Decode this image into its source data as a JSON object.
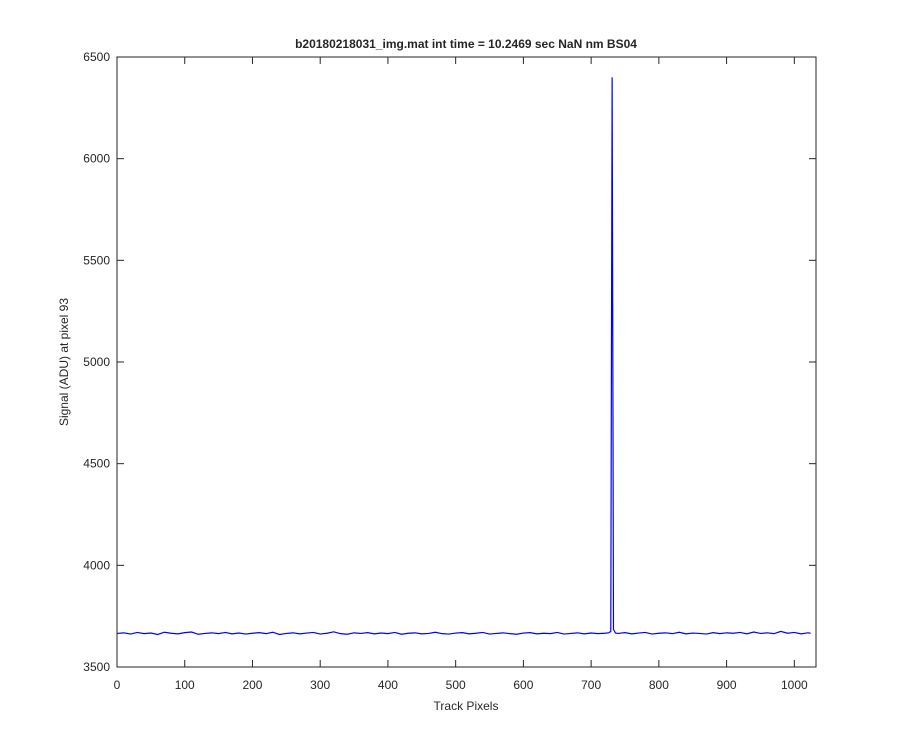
{
  "chart_data": {
    "type": "line",
    "title": "b20180218031_img.mat int time = 10.2469 sec  NaN nm BS04",
    "x_label": "Track Pixels",
    "y_label": "Signal (ADU) at pixel 93",
    "color": "#0000ff",
    "xlim": [
      0,
      1032
    ],
    "ylim": [
      3500,
      6500
    ],
    "xticks": [
      0,
      100,
      200,
      300,
      400,
      500,
      600,
      700,
      800,
      900,
      1000
    ],
    "yticks": [
      3500,
      4000,
      4500,
      5000,
      5500,
      6000,
      6500
    ],
    "grid": false,
    "x": [
      0,
      10,
      20,
      30,
      40,
      50,
      60,
      70,
      80,
      90,
      100,
      110,
      120,
      130,
      140,
      150,
      160,
      170,
      180,
      190,
      200,
      210,
      220,
      230,
      240,
      250,
      260,
      270,
      280,
      290,
      300,
      310,
      320,
      330,
      340,
      350,
      360,
      370,
      380,
      390,
      400,
      410,
      420,
      430,
      440,
      450,
      460,
      470,
      480,
      490,
      500,
      510,
      520,
      530,
      540,
      550,
      560,
      570,
      580,
      590,
      600,
      610,
      620,
      630,
      640,
      650,
      660,
      670,
      680,
      690,
      700,
      710,
      720,
      726,
      729,
      731,
      733,
      736,
      740,
      750,
      760,
      770,
      780,
      790,
      800,
      810,
      820,
      830,
      840,
      850,
      860,
      870,
      880,
      890,
      900,
      910,
      920,
      930,
      940,
      950,
      960,
      970,
      980,
      990,
      1000,
      1010,
      1020,
      1024
    ],
    "values": [
      3665,
      3668,
      3662,
      3670,
      3664,
      3667,
      3660,
      3671,
      3666,
      3663,
      3669,
      3672,
      3661,
      3665,
      3668,
      3664,
      3670,
      3663,
      3667,
      3662,
      3666,
      3669,
      3664,
      3671,
      3660,
      3665,
      3668,
      3663,
      3667,
      3670,
      3662,
      3666,
      3673,
      3664,
      3661,
      3668,
      3665,
      3669,
      3663,
      3667,
      3664,
      3670,
      3661,
      3666,
      3668,
      3663,
      3665,
      3671,
      3664,
      3662,
      3667,
      3669,
      3663,
      3666,
      3670,
      3662,
      3665,
      3668,
      3664,
      3661,
      3667,
      3669,
      3663,
      3666,
      3664,
      3670,
      3662,
      3665,
      3668,
      3663,
      3667,
      3664,
      3666,
      3668,
      3675,
      6400,
      3685,
      3667,
      3665,
      3669,
      3663,
      3667,
      3670,
      3662,
      3666,
      3668,
      3664,
      3671,
      3663,
      3667,
      3665,
      3662,
      3669,
      3664,
      3668,
      3666,
      3670,
      3663,
      3672,
      3665,
      3668,
      3664,
      3675,
      3666,
      3670,
      3663,
      3668,
      3666
    ]
  }
}
